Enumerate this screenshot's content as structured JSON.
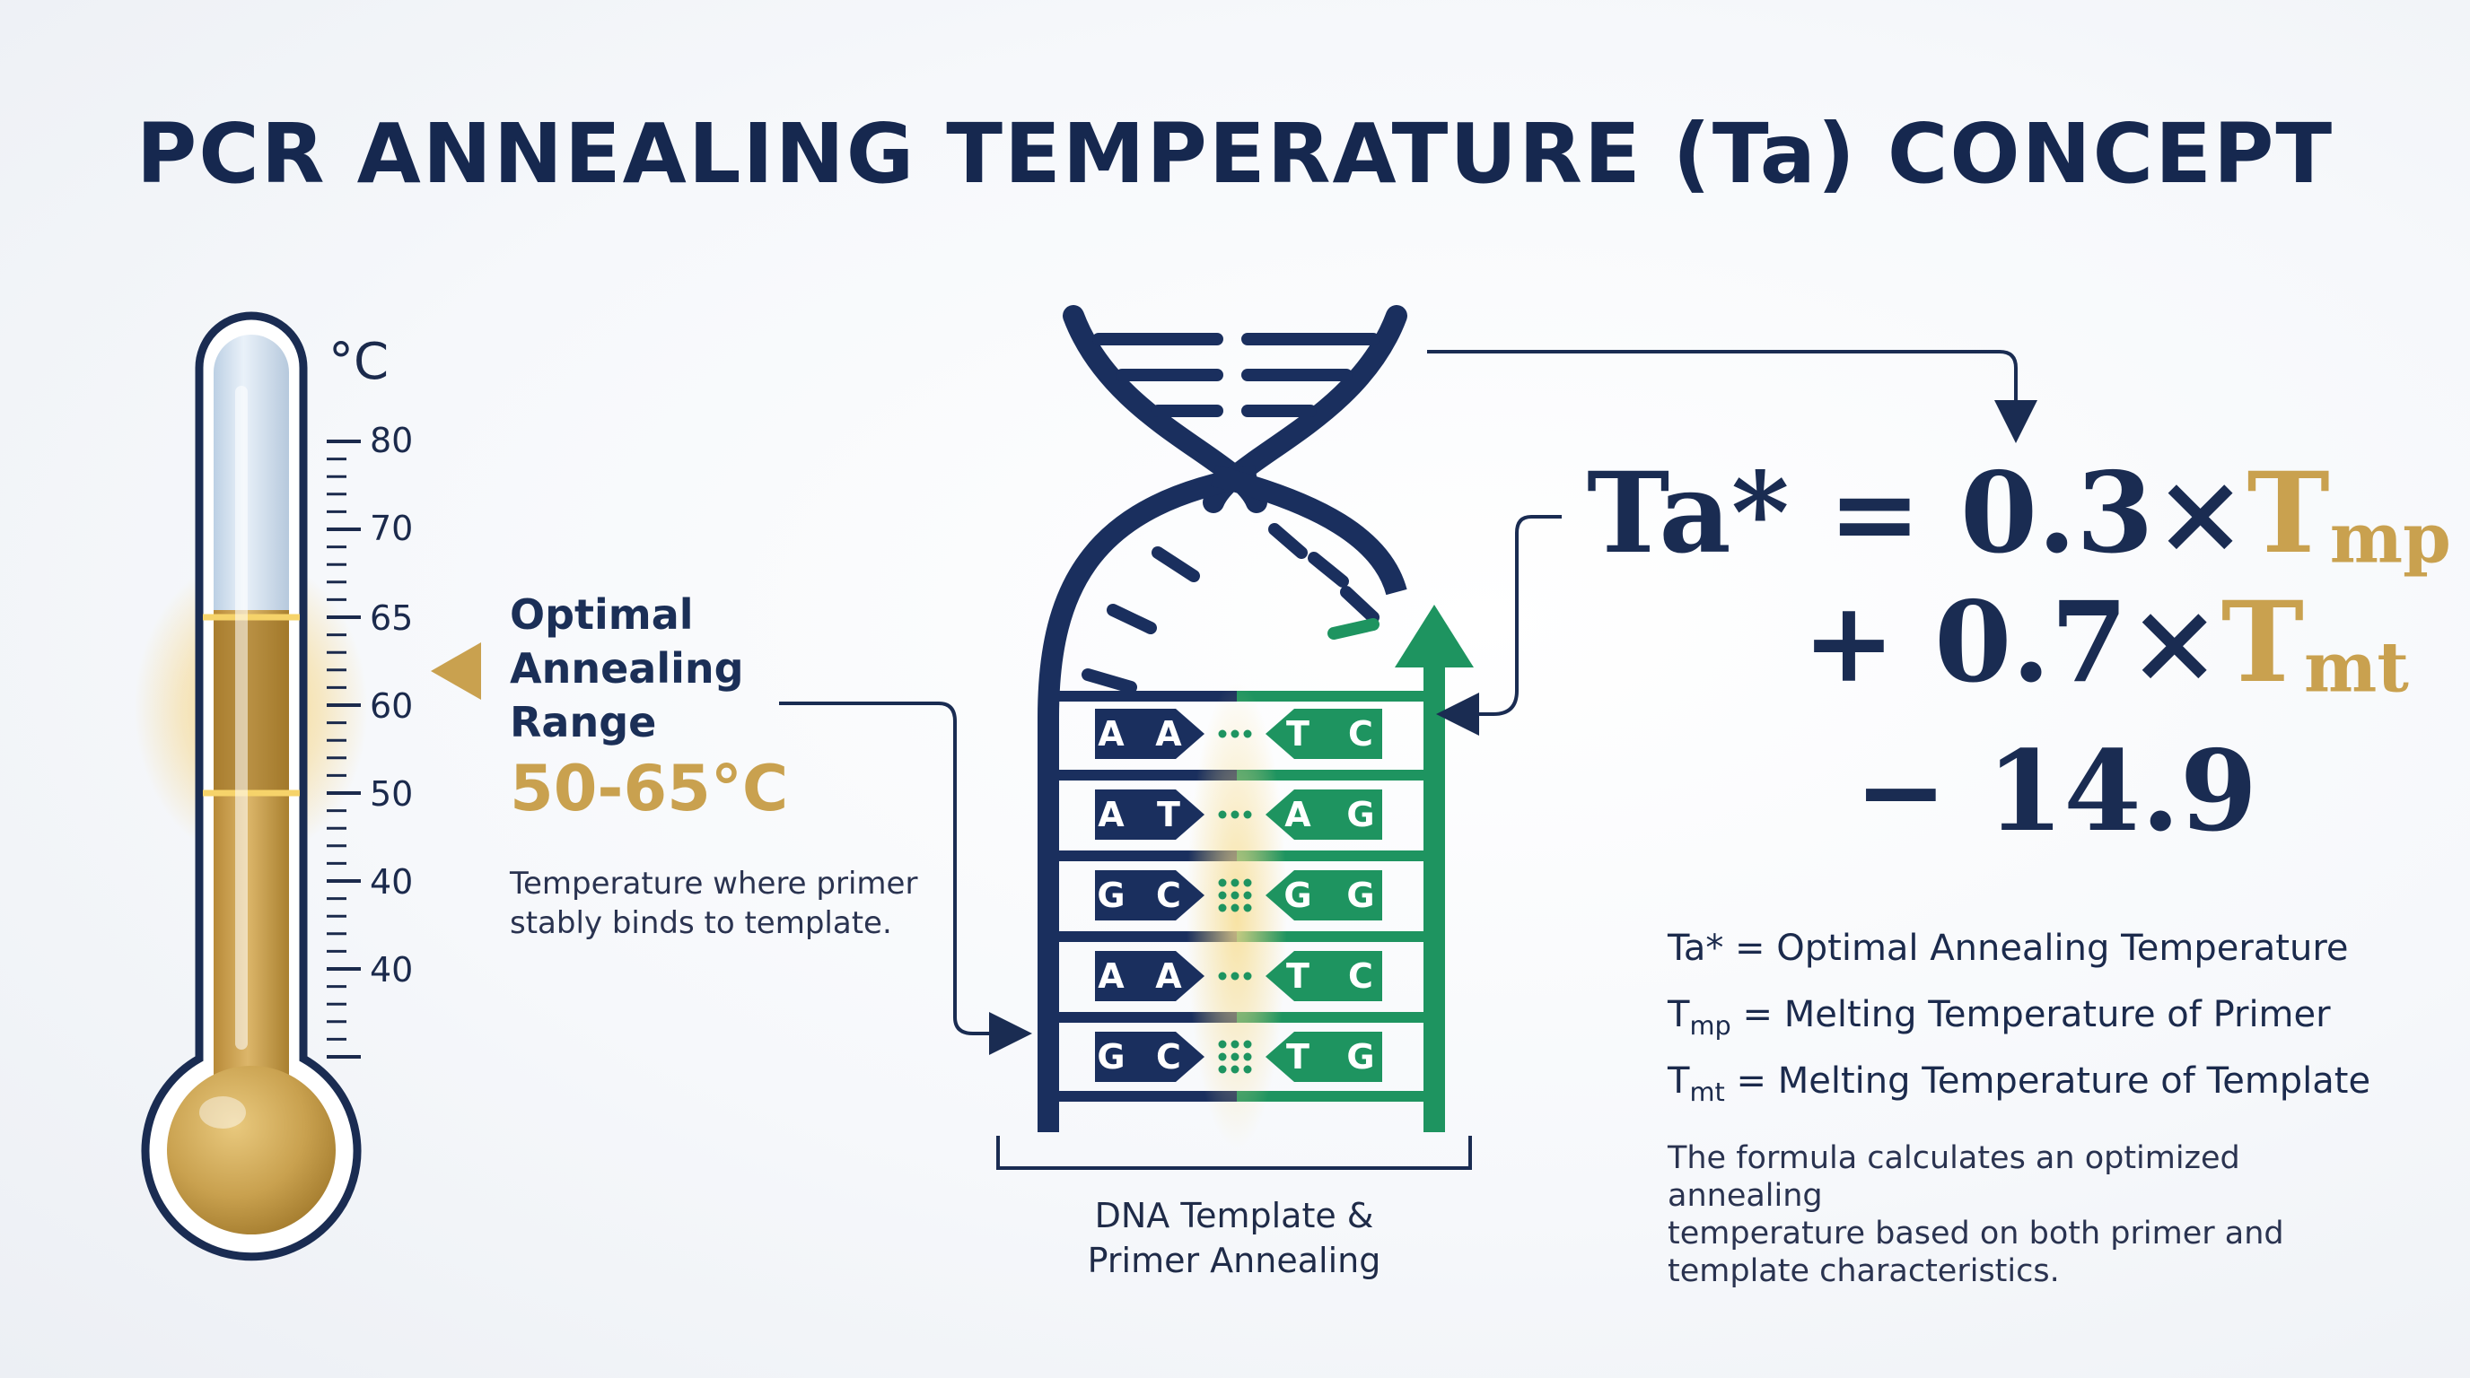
{
  "title": "PCR ANNEALING TEMPERATURE (Ta) CONCEPT",
  "thermometer": {
    "unit": "°C",
    "scale": [
      "80",
      "70",
      "65",
      "60",
      "50",
      "40",
      "40"
    ],
    "highlight_color": "#f2c14e",
    "fill_color": "#c9a14f"
  },
  "optimal": {
    "title_lines": [
      "Optimal",
      "Annealing",
      "Range"
    ],
    "range": "50-65°C",
    "desc_lines": [
      "Temperature where primer",
      "stably binds to template."
    ]
  },
  "dna": {
    "pairs": [
      {
        "left": [
          "A",
          "A"
        ],
        "right": [
          "T",
          "C"
        ]
      },
      {
        "left": [
          "A",
          "T"
        ],
        "right": [
          "A",
          "G"
        ]
      },
      {
        "left": [
          "G",
          "C"
        ],
        "right": [
          "G",
          "G"
        ]
      },
      {
        "left": [
          "A",
          "A"
        ],
        "right": [
          "T",
          "C"
        ]
      },
      {
        "left": [
          "G",
          "C"
        ],
        "right": [
          "T",
          "G"
        ]
      }
    ],
    "caption_lines": [
      "DNA Template &",
      "Primer Annealing"
    ],
    "template_color": "#1a2f5e",
    "primer_color": "#1e9460"
  },
  "formula": {
    "lhs": "Ta*",
    "eq": "=",
    "coef1": "0.3×",
    "t_mp": "T",
    "t_mp_sub": "mp",
    "plus": "+",
    "coef2": "0.7×",
    "t_mt": "T",
    "t_mt_sub": "mt",
    "minus": "−",
    "const": "14.9"
  },
  "legend": {
    "ta": "Ta* = Optimal Annealing Temperature",
    "tmp_t": "T",
    "tmp_sub": "mp",
    "tmp_text": " = Melting Temperature of Primer",
    "tmt_t": "T",
    "tmt_sub": "mt",
    "tmt_text": " = Melting Temperature of Template"
  },
  "note_lines": [
    "The formula calculates an optimized annealing",
    "temperature based on both primer and",
    "template characteristics."
  ]
}
